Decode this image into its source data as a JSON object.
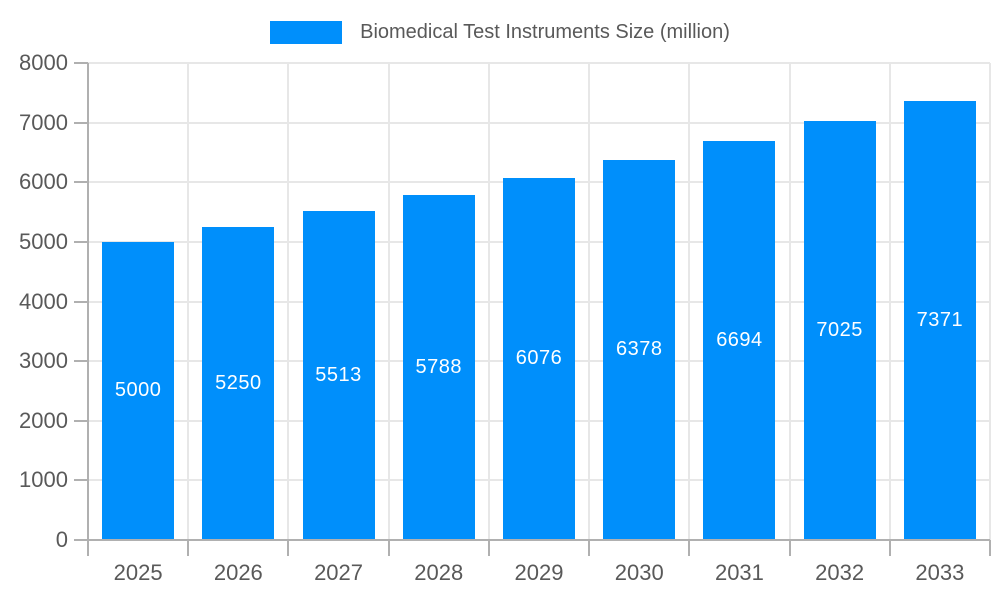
{
  "chart_data": {
    "type": "bar",
    "title": "Biomedical Test Instruments Size (million)",
    "categories": [
      "2025",
      "2026",
      "2027",
      "2028",
      "2029",
      "2030",
      "2031",
      "2032",
      "2033"
    ],
    "series": [
      {
        "name": "Biomedical Test Instruments Size (million)",
        "values": [
          5000,
          5250,
          5513,
          5788,
          6076,
          6378,
          6694,
          7025,
          7371
        ]
      }
    ],
    "bar_labels": [
      "5000",
      "5250",
      "5513",
      "5788",
      "6076",
      "6378",
      "6694",
      "7025",
      "7371"
    ],
    "xlabel": "",
    "ylabel": "",
    "ylim": [
      0,
      8000
    ],
    "ytick_step": 1000,
    "ytick_labels": [
      "0",
      "1000",
      "2000",
      "3000",
      "4000",
      "5000",
      "6000",
      "7000",
      "8000"
    ],
    "grid": true,
    "legend_position": "top"
  },
  "colors": {
    "bar": "#008FFB",
    "bar_label_text": "#ffffff",
    "gridline": "#e7e7e7",
    "axis": "#b0b0b0",
    "label_text": "#595959",
    "background": "#ffffff"
  }
}
